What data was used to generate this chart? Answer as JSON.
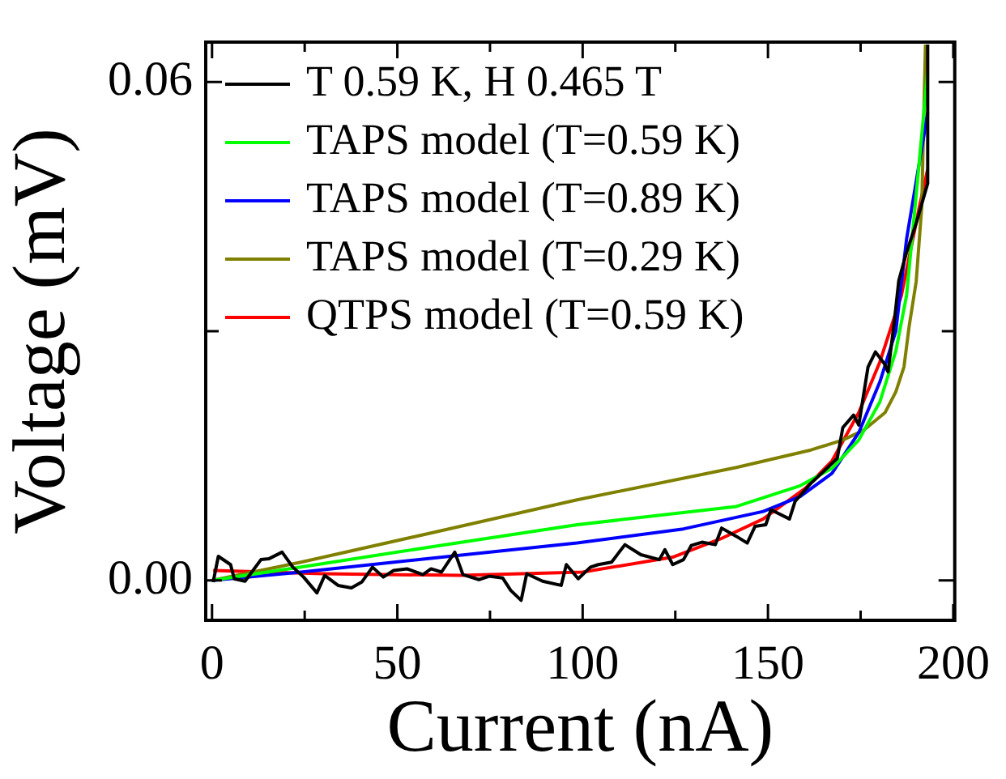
{
  "chart_data": {
    "type": "line",
    "xlabel": "Current (nA)",
    "ylabel": "Voltage (mV)",
    "xlim": [
      -1.7,
      200.4
    ],
    "ylim": [
      -0.0048,
      0.0648
    ],
    "xticks": [
      0,
      {
        "value": 25,
        "label": null
      },
      50,
      {
        "value": 75,
        "label": null
      },
      100,
      {
        "value": 125,
        "label": null
      },
      150,
      {
        "value": 175,
        "label": null
      },
      200
    ],
    "yticks": [
      {
        "value": 0,
        "label": "0.00"
      },
      {
        "value": 0.03,
        "label": null
      },
      {
        "value": 0.06,
        "label": "0.06"
      }
    ],
    "legend": "top left",
    "marker": "none",
    "line_style": "solid",
    "series": [
      {
        "name": "T 0.59 K, H 0.465 T",
        "color": "#000000",
        "x": [
          0.3,
          1.7,
          5,
          6,
          8.9,
          13.2,
          15.3,
          18.9,
          21.8,
          24.7,
          28.3,
          30.4,
          34,
          37.6,
          40.4,
          43.3,
          46.2,
          49,
          52.6,
          56.9,
          59.1,
          61.9,
          65.5,
          67.7,
          72,
          74.8,
          78.4,
          80.6,
          83.4,
          84.9,
          89.2,
          94.2,
          95.6,
          98.8,
          102.1,
          104.2,
          107.8,
          111.4,
          115.7,
          120.7,
          122.2,
          124.3,
          127.2,
          129.3,
          132.2,
          135.8,
          137.5,
          141.5,
          144.4,
          146.5,
          149.4,
          150.8,
          155.8,
          157.3,
          161.6,
          165.2,
          168.7,
          170.2,
          173.1,
          174.5,
          177,
          179,
          181.4,
          182.4,
          184.1,
          185.3,
          187.4,
          190,
          193.1,
          193.1
        ],
        "values": [
          -0.0002,
          0.0029,
          0.0019,
          0.0002,
          -0.0001,
          0.0025,
          0.0026,
          0.0034,
          0.0016,
          0.0004,
          -0.0015,
          0.0006,
          -0.0006,
          -0.0009,
          -0.0002,
          0.0016,
          0.0004,
          0.0012,
          0.0014,
          0.0007,
          0.0014,
          0.001,
          0.0034,
          0.0007,
          0.0001,
          0.0005,
          0.0003,
          -0.0012,
          -0.0024,
          0.0008,
          -0.0001,
          -0.0006,
          0.0019,
          0.0002,
          0.0016,
          0.0019,
          0.0022,
          0.0043,
          0.0031,
          0.0025,
          0.0037,
          0.0019,
          0.0025,
          0.0042,
          0.0046,
          0.0043,
          0.0063,
          0.0053,
          0.0045,
          0.0065,
          0.0067,
          0.0085,
          0.0074,
          0.0095,
          0.0117,
          0.0132,
          0.0147,
          0.0184,
          0.0199,
          0.0187,
          0.0257,
          0.0275,
          0.0261,
          0.0251,
          0.0312,
          0.0361,
          0.0395,
          0.043,
          0.0478,
          0.0645
        ]
      },
      {
        "name": "TAPS model (T=0.59 K)",
        "color": "#00ff00",
        "x": [
          0,
          24,
          60,
          98.5,
          141.5,
          158.7,
          167.3,
          174.5,
          180.2,
          184.5,
          187.4,
          189.5,
          193.1
        ],
        "values": [
          0,
          0.0016,
          0.0041,
          0.0067,
          0.0089,
          0.0114,
          0.0135,
          0.0169,
          0.0215,
          0.0276,
          0.0343,
          0.0441,
          0.0613
        ]
      },
      {
        "name": "TAPS model (T=0.89 K)",
        "color": "#0000ff",
        "x": [
          0,
          24,
          60,
          98.5,
          127.2,
          148.7,
          158.7,
          167.3,
          174.5,
          180.2,
          184.5,
          187.4,
          193.1
        ],
        "values": [
          0,
          0.001,
          0.0027,
          0.0045,
          0.0062,
          0.0083,
          0.0101,
          0.0129,
          0.0178,
          0.0239,
          0.03,
          0.0411,
          0.0563
        ]
      },
      {
        "name": "TAPS model (T=0.29 K)",
        "color": "#808000",
        "x": [
          0,
          24,
          60,
          98.5,
          141.5,
          161.6,
          170.2,
          175.9,
          181.6,
          184.5,
          186.7,
          188.1,
          190,
          191.5,
          192,
          192.5
        ],
        "values": [
          0,
          0.0022,
          0.0058,
          0.0097,
          0.0136,
          0.0157,
          0.0169,
          0.0181,
          0.0202,
          0.0227,
          0.0257,
          0.0306,
          0.036,
          0.045,
          0.055,
          0.0645
        ]
      },
      {
        "name": "QTPS model (T=0.59 K)",
        "color": "#ff0000",
        "x": [
          0.3,
          30,
          67,
          100,
          124.3,
          137.2,
          148.7,
          160.1,
          167.3,
          174.5,
          180.2,
          186,
          191,
          193.1
        ],
        "values": [
          0.0012,
          0.0008,
          0.0006,
          0.001,
          0.0028,
          0.005,
          0.0074,
          0.0111,
          0.0144,
          0.0202,
          0.0263,
          0.0343,
          0.0453,
          0.0495
        ]
      }
    ]
  }
}
